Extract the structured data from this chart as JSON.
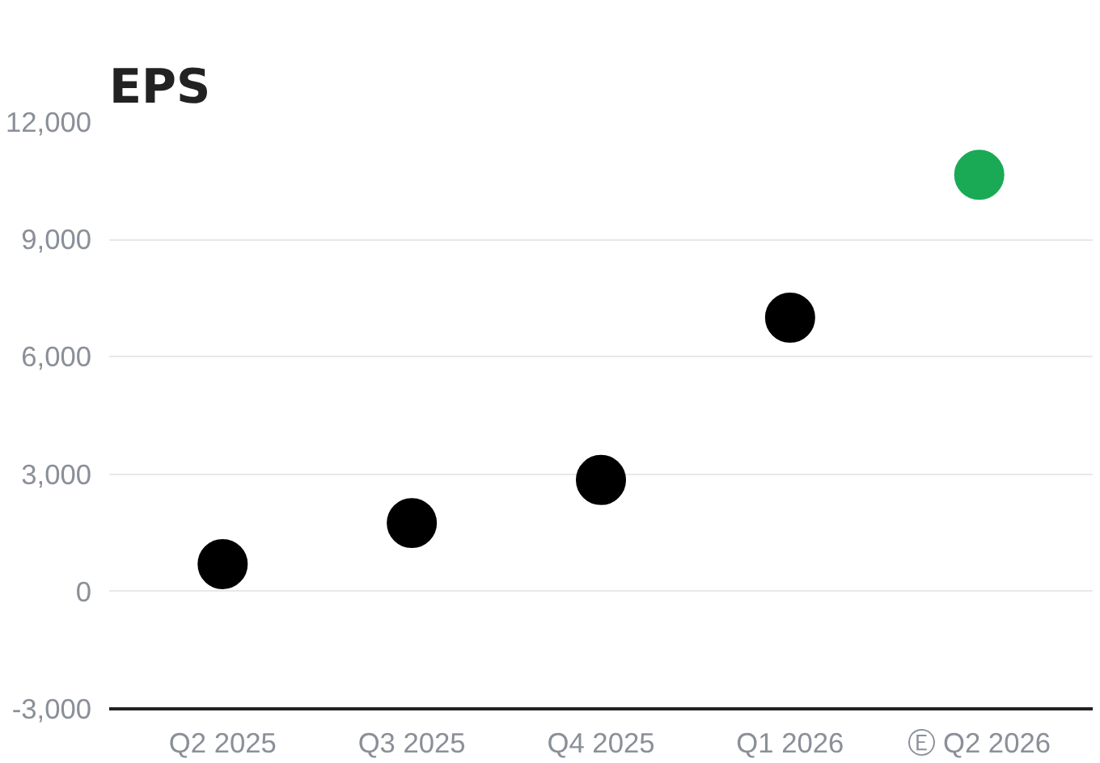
{
  "chart_data": {
    "type": "scatter",
    "title": "EPS",
    "categories": [
      "Q2 2025",
      "Q3 2025",
      "Q4 2025",
      "Q1 2026",
      "Ⓔ Q2 2026"
    ],
    "values": [
      700,
      1750,
      2850,
      7000,
      10650
    ],
    "colors": [
      "#000000",
      "#000000",
      "#000000",
      "#000000",
      "#1aaa55"
    ],
    "marker": "circle",
    "ylim": [
      -3000,
      12000
    ],
    "yticks": [
      {
        "value": -3000,
        "label": "-3,000"
      },
      0,
      {
        "value": 3000,
        "label": "3,000"
      },
      {
        "value": 6000,
        "label": "6,000"
      },
      {
        "value": 9000,
        "label": "9,000"
      },
      {
        "value": 12000,
        "label": "12,000"
      }
    ],
    "grid": "y"
  }
}
